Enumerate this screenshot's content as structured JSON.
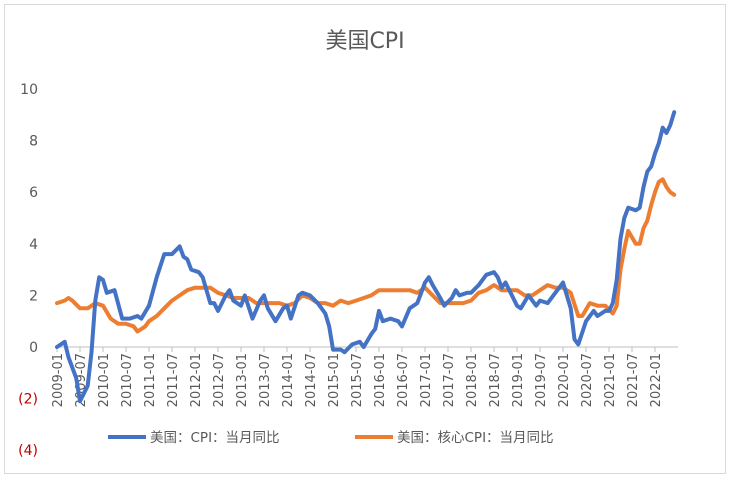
{
  "chart_data": {
    "type": "line",
    "title": "美国CPI",
    "xlabel": "",
    "ylabel": "",
    "ylim": [
      -4,
      10
    ],
    "y_ticks": [
      {
        "value": 10,
        "label": "10"
      },
      {
        "value": 8,
        "label": "8"
      },
      {
        "value": 6,
        "label": "6"
      },
      {
        "value": 4,
        "label": "4"
      },
      {
        "value": 2,
        "label": "2"
      },
      {
        "value": 0,
        "label": "0"
      },
      {
        "value": -2,
        "label": "(2)"
      },
      {
        "value": -4,
        "label": "(4)"
      }
    ],
    "x_ticks": [
      "2009-01",
      "2009-07",
      "2010-01",
      "2010-07",
      "2011-01",
      "2011-07",
      "2012-01",
      "2012-07",
      "2013-01",
      "2013-07",
      "2014-01",
      "2014-07",
      "2015-01",
      "2015-07",
      "2016-01",
      "2016-07",
      "2017-01",
      "2017-07",
      "2018-01",
      "2018-07",
      "2019-01",
      "2019-07",
      "2020-01",
      "2020-07",
      "2021-01",
      "2021-07",
      "2022-01"
    ],
    "x_start": "2009-01",
    "legend_position": "bottom",
    "grid": false,
    "negative_label_color": "#c00000",
    "series": [
      {
        "name": "美国：CPI：当月同比",
        "color": "#4472c4",
        "points": [
          [
            "2009-01",
            0.0
          ],
          [
            "2009-03",
            0.2
          ],
          [
            "2009-04",
            -0.4
          ],
          [
            "2009-06",
            -1.2
          ],
          [
            "2009-07",
            -2.1
          ],
          [
            "2009-09",
            -1.5
          ],
          [
            "2009-10",
            -0.2
          ],
          [
            "2009-11",
            1.8
          ],
          [
            "2009-12",
            2.7
          ],
          [
            "2010-01",
            2.6
          ],
          [
            "2010-02",
            2.1
          ],
          [
            "2010-04",
            2.2
          ],
          [
            "2010-06",
            1.1
          ],
          [
            "2010-08",
            1.1
          ],
          [
            "2010-10",
            1.2
          ],
          [
            "2010-11",
            1.1
          ],
          [
            "2011-01",
            1.6
          ],
          [
            "2011-03",
            2.7
          ],
          [
            "2011-05",
            3.6
          ],
          [
            "2011-07",
            3.6
          ],
          [
            "2011-09",
            3.9
          ],
          [
            "2011-10",
            3.5
          ],
          [
            "2011-11",
            3.4
          ],
          [
            "2011-12",
            3.0
          ],
          [
            "2012-02",
            2.9
          ],
          [
            "2012-03",
            2.7
          ],
          [
            "2012-05",
            1.7
          ],
          [
            "2012-06",
            1.7
          ],
          [
            "2012-07",
            1.4
          ],
          [
            "2012-09",
            2.0
          ],
          [
            "2012-10",
            2.2
          ],
          [
            "2012-11",
            1.8
          ],
          [
            "2013-01",
            1.6
          ],
          [
            "2013-02",
            2.0
          ],
          [
            "2013-04",
            1.1
          ],
          [
            "2013-06",
            1.8
          ],
          [
            "2013-07",
            2.0
          ],
          [
            "2013-08",
            1.5
          ],
          [
            "2013-10",
            1.0
          ],
          [
            "2013-12",
            1.5
          ],
          [
            "2014-01",
            1.6
          ],
          [
            "2014-02",
            1.1
          ],
          [
            "2014-04",
            2.0
          ],
          [
            "2014-05",
            2.1
          ],
          [
            "2014-07",
            2.0
          ],
          [
            "2014-09",
            1.7
          ],
          [
            "2014-11",
            1.3
          ],
          [
            "2014-12",
            0.8
          ],
          [
            "2015-01",
            -0.1
          ],
          [
            "2015-03",
            -0.1
          ],
          [
            "2015-04",
            -0.2
          ],
          [
            "2015-06",
            0.1
          ],
          [
            "2015-08",
            0.2
          ],
          [
            "2015-09",
            0.0
          ],
          [
            "2015-11",
            0.5
          ],
          [
            "2015-12",
            0.7
          ],
          [
            "2016-01",
            1.4
          ],
          [
            "2016-02",
            1.0
          ],
          [
            "2016-04",
            1.1
          ],
          [
            "2016-06",
            1.0
          ],
          [
            "2016-07",
            0.8
          ],
          [
            "2016-09",
            1.5
          ],
          [
            "2016-11",
            1.7
          ],
          [
            "2016-12",
            2.1
          ],
          [
            "2017-01",
            2.5
          ],
          [
            "2017-02",
            2.7
          ],
          [
            "2017-03",
            2.4
          ],
          [
            "2017-05",
            1.9
          ],
          [
            "2017-06",
            1.6
          ],
          [
            "2017-08",
            1.9
          ],
          [
            "2017-09",
            2.2
          ],
          [
            "2017-10",
            2.0
          ],
          [
            "2017-12",
            2.1
          ],
          [
            "2018-01",
            2.1
          ],
          [
            "2018-03",
            2.4
          ],
          [
            "2018-05",
            2.8
          ],
          [
            "2018-07",
            2.9
          ],
          [
            "2018-08",
            2.7
          ],
          [
            "2018-09",
            2.3
          ],
          [
            "2018-10",
            2.5
          ],
          [
            "2018-12",
            1.9
          ],
          [
            "2019-01",
            1.6
          ],
          [
            "2019-02",
            1.5
          ],
          [
            "2019-04",
            2.0
          ],
          [
            "2019-06",
            1.6
          ],
          [
            "2019-07",
            1.8
          ],
          [
            "2019-09",
            1.7
          ],
          [
            "2019-11",
            2.1
          ],
          [
            "2019-12",
            2.3
          ],
          [
            "2020-01",
            2.5
          ],
          [
            "2020-03",
            1.5
          ],
          [
            "2020-04",
            0.3
          ],
          [
            "2020-05",
            0.1
          ],
          [
            "2020-07",
            1.0
          ],
          [
            "2020-09",
            1.4
          ],
          [
            "2020-10",
            1.2
          ],
          [
            "2020-12",
            1.4
          ],
          [
            "2021-01",
            1.4
          ],
          [
            "2021-02",
            1.7
          ],
          [
            "2021-03",
            2.6
          ],
          [
            "2021-04",
            4.2
          ],
          [
            "2021-05",
            5.0
          ],
          [
            "2021-06",
            5.4
          ],
          [
            "2021-08",
            5.3
          ],
          [
            "2021-09",
            5.4
          ],
          [
            "2021-10",
            6.2
          ],
          [
            "2021-11",
            6.8
          ],
          [
            "2021-12",
            7.0
          ],
          [
            "2022-01",
            7.5
          ],
          [
            "2022-02",
            7.9
          ],
          [
            "2022-03",
            8.5
          ],
          [
            "2022-04",
            8.3
          ],
          [
            "2022-05",
            8.6
          ],
          [
            "2022-06",
            9.1
          ]
        ]
      },
      {
        "name": "美国：核心CPI：当月同比",
        "color": "#ed7d31",
        "points": [
          [
            "2009-01",
            1.7
          ],
          [
            "2009-03",
            1.8
          ],
          [
            "2009-04",
            1.9
          ],
          [
            "2009-05",
            1.8
          ],
          [
            "2009-07",
            1.5
          ],
          [
            "2009-09",
            1.5
          ],
          [
            "2009-11",
            1.7
          ],
          [
            "2010-01",
            1.6
          ],
          [
            "2010-03",
            1.1
          ],
          [
            "2010-05",
            0.9
          ],
          [
            "2010-07",
            0.9
          ],
          [
            "2010-09",
            0.8
          ],
          [
            "2010-10",
            0.6
          ],
          [
            "2010-12",
            0.8
          ],
          [
            "2011-01",
            1.0
          ],
          [
            "2011-03",
            1.2
          ],
          [
            "2011-05",
            1.5
          ],
          [
            "2011-07",
            1.8
          ],
          [
            "2011-09",
            2.0
          ],
          [
            "2011-11",
            2.2
          ],
          [
            "2012-01",
            2.3
          ],
          [
            "2012-03",
            2.3
          ],
          [
            "2012-05",
            2.3
          ],
          [
            "2012-07",
            2.1
          ],
          [
            "2012-09",
            2.0
          ],
          [
            "2012-11",
            1.9
          ],
          [
            "2013-01",
            1.9
          ],
          [
            "2013-03",
            1.9
          ],
          [
            "2013-05",
            1.7
          ],
          [
            "2013-07",
            1.7
          ],
          [
            "2013-09",
            1.7
          ],
          [
            "2013-11",
            1.7
          ],
          [
            "2014-01",
            1.6
          ],
          [
            "2014-03",
            1.7
          ],
          [
            "2014-05",
            2.0
          ],
          [
            "2014-07",
            1.9
          ],
          [
            "2014-09",
            1.7
          ],
          [
            "2014-11",
            1.7
          ],
          [
            "2015-01",
            1.6
          ],
          [
            "2015-03",
            1.8
          ],
          [
            "2015-05",
            1.7
          ],
          [
            "2015-07",
            1.8
          ],
          [
            "2015-09",
            1.9
          ],
          [
            "2015-11",
            2.0
          ],
          [
            "2016-01",
            2.2
          ],
          [
            "2016-03",
            2.2
          ],
          [
            "2016-05",
            2.2
          ],
          [
            "2016-07",
            2.2
          ],
          [
            "2016-09",
            2.2
          ],
          [
            "2016-11",
            2.1
          ],
          [
            "2017-01",
            2.3
          ],
          [
            "2017-03",
            2.0
          ],
          [
            "2017-05",
            1.7
          ],
          [
            "2017-07",
            1.7
          ],
          [
            "2017-09",
            1.7
          ],
          [
            "2017-11",
            1.7
          ],
          [
            "2018-01",
            1.8
          ],
          [
            "2018-03",
            2.1
          ],
          [
            "2018-05",
            2.2
          ],
          [
            "2018-07",
            2.4
          ],
          [
            "2018-09",
            2.2
          ],
          [
            "2018-11",
            2.2
          ],
          [
            "2019-01",
            2.2
          ],
          [
            "2019-03",
            2.0
          ],
          [
            "2019-05",
            2.0
          ],
          [
            "2019-07",
            2.2
          ],
          [
            "2019-09",
            2.4
          ],
          [
            "2019-11",
            2.3
          ],
          [
            "2020-01",
            2.3
          ],
          [
            "2020-03",
            2.1
          ],
          [
            "2020-05",
            1.2
          ],
          [
            "2020-06",
            1.2
          ],
          [
            "2020-08",
            1.7
          ],
          [
            "2020-10",
            1.6
          ],
          [
            "2020-12",
            1.6
          ],
          [
            "2021-02",
            1.3
          ],
          [
            "2021-03",
            1.6
          ],
          [
            "2021-04",
            3.0
          ],
          [
            "2021-05",
            3.8
          ],
          [
            "2021-06",
            4.5
          ],
          [
            "2021-08",
            4.0
          ],
          [
            "2021-09",
            4.0
          ],
          [
            "2021-10",
            4.6
          ],
          [
            "2021-11",
            4.9
          ],
          [
            "2021-12",
            5.5
          ],
          [
            "2022-01",
            6.0
          ],
          [
            "2022-02",
            6.4
          ],
          [
            "2022-03",
            6.5
          ],
          [
            "2022-04",
            6.2
          ],
          [
            "2022-05",
            6.0
          ],
          [
            "2022-06",
            5.9
          ]
        ]
      }
    ]
  }
}
